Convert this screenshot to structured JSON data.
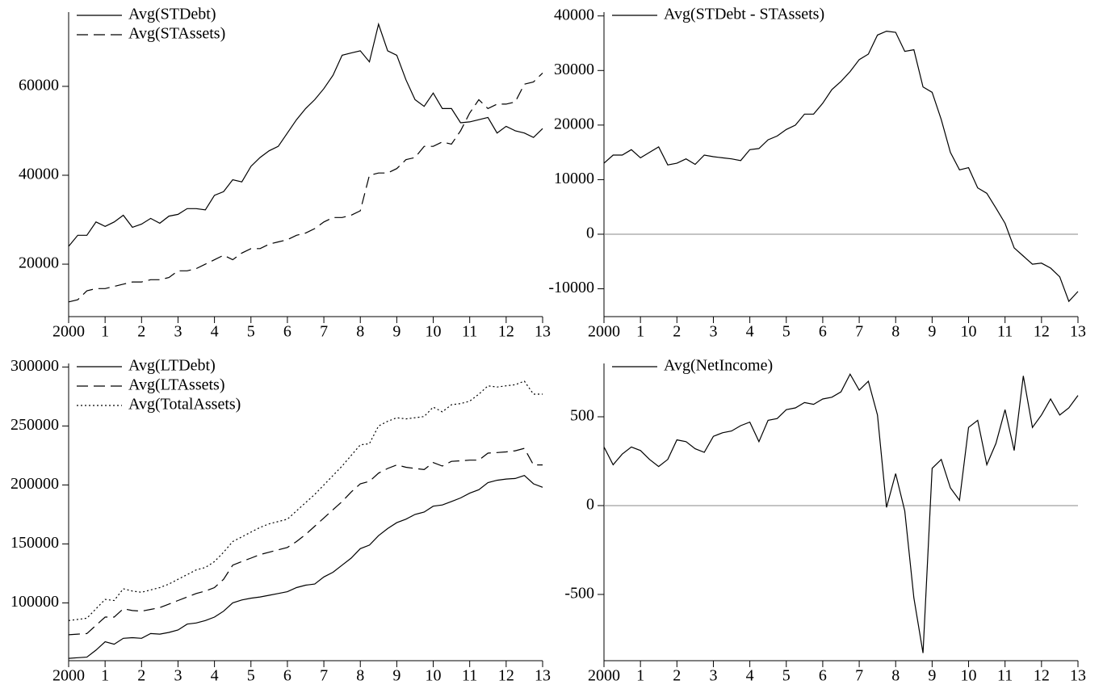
{
  "chart_data": [
    {
      "type": "line",
      "x": [
        2000,
        2000.25,
        2000.5,
        2000.75,
        2001,
        2001.25,
        2001.5,
        2001.75,
        2002,
        2002.25,
        2002.5,
        2002.75,
        2003,
        2003.25,
        2003.5,
        2003.75,
        2004,
        2004.25,
        2004.5,
        2004.75,
        2005,
        2005.25,
        2005.5,
        2005.75,
        2006,
        2006.25,
        2006.5,
        2006.75,
        2007,
        2007.25,
        2007.5,
        2007.75,
        2008,
        2008.25,
        2008.5,
        2008.75,
        2009,
        2009.25,
        2009.5,
        2009.75,
        2010,
        2010.25,
        2010.5,
        2010.75,
        2011,
        2011.25,
        2011.5,
        2011.75,
        2012,
        2012.25,
        2012.5,
        2012.75,
        2013
      ],
      "xlim": [
        2000,
        2013
      ],
      "xticks": [
        2000,
        {
          "value": 2001,
          "label": "1"
        },
        {
          "value": 2002,
          "label": "2"
        },
        {
          "value": 2003,
          "label": "3"
        },
        {
          "value": 2004,
          "label": "4"
        },
        {
          "value": 2005,
          "label": "5"
        },
        {
          "value": 2006,
          "label": "6"
        },
        {
          "value": 2007,
          "label": "7"
        },
        {
          "value": 2008,
          "label": "8"
        },
        {
          "value": 2009,
          "label": "9"
        },
        {
          "value": 2010,
          "label": "10"
        },
        {
          "value": 2011,
          "label": "11"
        },
        {
          "value": 2012,
          "label": "12"
        },
        {
          "value": 2013,
          "label": "13"
        }
      ],
      "ylim": [
        8200,
        76700
      ],
      "yticks": [
        20000,
        40000,
        60000
      ],
      "zero_line": false,
      "series": [
        {
          "name": "Avg(STDebt)",
          "color": "#000000",
          "style": "solid",
          "values": [
            24000,
            26500,
            26500,
            29500,
            28500,
            29500,
            31000,
            28300,
            29000,
            30300,
            29200,
            30800,
            31200,
            32500,
            32500,
            32200,
            35500,
            36300,
            39000,
            38500,
            42000,
            44000,
            45500,
            46500,
            49500,
            52500,
            55000,
            57000,
            59500,
            62500,
            67000,
            67500,
            68000,
            65500,
            74000,
            68000,
            67000,
            61500,
            57000,
            55500,
            58500,
            55000,
            55000,
            51800,
            52000,
            52500,
            53000,
            49500,
            51000,
            50000,
            49500,
            48500,
            50500
          ]
        },
        {
          "name": "Avg(STAssets)",
          "color": "#000000",
          "style": "dashed",
          "values": [
            11500,
            12000,
            14000,
            14500,
            14500,
            15000,
            15500,
            16000,
            16000,
            16500,
            16500,
            17000,
            18500,
            18500,
            19000,
            20000,
            21000,
            22000,
            21000,
            22500,
            23500,
            23500,
            24500,
            25000,
            25500,
            26500,
            27000,
            28000,
            29500,
            30500,
            30500,
            31000,
            32000,
            40000,
            40500,
            40500,
            41500,
            43500,
            44000,
            46500,
            46500,
            47500,
            47000,
            50000,
            54000,
            57000,
            55000,
            56000,
            56000,
            56500,
            60500,
            61000,
            63000
          ]
        }
      ]
    },
    {
      "type": "line",
      "x": [
        2000,
        2000.25,
        2000.5,
        2000.75,
        2001,
        2001.25,
        2001.5,
        2001.75,
        2002,
        2002.25,
        2002.5,
        2002.75,
        2003,
        2003.25,
        2003.5,
        2003.75,
        2004,
        2004.25,
        2004.5,
        2004.75,
        2005,
        2005.25,
        2005.5,
        2005.75,
        2006,
        2006.25,
        2006.5,
        2006.75,
        2007,
        2007.25,
        2007.5,
        2007.75,
        2008,
        2008.25,
        2008.5,
        2008.75,
        2009,
        2009.25,
        2009.5,
        2009.75,
        2010,
        2010.25,
        2010.5,
        2010.75,
        2011,
        2011.25,
        2011.5,
        2011.75,
        2012,
        2012.25,
        2012.5,
        2012.75,
        2013
      ],
      "xlim": [
        2000,
        2013
      ],
      "xticks": [
        2000,
        {
          "value": 2001,
          "label": "1"
        },
        {
          "value": 2002,
          "label": "2"
        },
        {
          "value": 2003,
          "label": "3"
        },
        {
          "value": 2004,
          "label": "4"
        },
        {
          "value": 2005,
          "label": "5"
        },
        {
          "value": 2006,
          "label": "6"
        },
        {
          "value": 2007,
          "label": "7"
        },
        {
          "value": 2008,
          "label": "8"
        },
        {
          "value": 2009,
          "label": "9"
        },
        {
          "value": 2010,
          "label": "10"
        },
        {
          "value": 2011,
          "label": "11"
        },
        {
          "value": 2012,
          "label": "12"
        },
        {
          "value": 2013,
          "label": "13"
        }
      ],
      "ylim": [
        -15100,
        40700
      ],
      "yticks": [
        -10000,
        0,
        10000,
        20000,
        30000,
        40000
      ],
      "zero_line": true,
      "series": [
        {
          "name": "Avg(STDebt - STAssets)",
          "color": "#000000",
          "style": "solid",
          "values": [
            13000,
            14500,
            14500,
            15500,
            14000,
            15000,
            16000,
            12700,
            13000,
            13800,
            12800,
            14500,
            14200,
            14000,
            13800,
            13500,
            15500,
            15700,
            17300,
            18000,
            19200,
            20000,
            22000,
            22000,
            24000,
            26500,
            28000,
            29800,
            32000,
            33000,
            36500,
            37200,
            37000,
            33500,
            33800,
            27000,
            26000,
            21000,
            15000,
            11800,
            12200,
            8500,
            7500,
            4800,
            2000,
            -2500,
            -4000,
            -5500,
            -5300,
            -6200,
            -7800,
            -12300,
            -10500
          ]
        }
      ]
    },
    {
      "type": "line",
      "x": [
        2000,
        2000.25,
        2000.5,
        2000.75,
        2001,
        2001.25,
        2001.5,
        2001.75,
        2002,
        2002.25,
        2002.5,
        2002.75,
        2003,
        2003.25,
        2003.5,
        2003.75,
        2004,
        2004.25,
        2004.5,
        2004.75,
        2005,
        2005.25,
        2005.5,
        2005.75,
        2006,
        2006.25,
        2006.5,
        2006.75,
        2007,
        2007.25,
        2007.5,
        2007.75,
        2008,
        2008.25,
        2008.5,
        2008.75,
        2009,
        2009.25,
        2009.5,
        2009.75,
        2010,
        2010.25,
        2010.5,
        2010.75,
        2011,
        2011.25,
        2011.5,
        2011.75,
        2012,
        2012.25,
        2012.5,
        2012.75,
        2013
      ],
      "xlim": [
        2000,
        2013
      ],
      "xticks": [
        2000,
        {
          "value": 2001,
          "label": "1"
        },
        {
          "value": 2002,
          "label": "2"
        },
        {
          "value": 2003,
          "label": "3"
        },
        {
          "value": 2004,
          "label": "4"
        },
        {
          "value": 2005,
          "label": "5"
        },
        {
          "value": 2006,
          "label": "6"
        },
        {
          "value": 2007,
          "label": "7"
        },
        {
          "value": 2008,
          "label": "8"
        },
        {
          "value": 2009,
          "label": "9"
        },
        {
          "value": 2010,
          "label": "10"
        },
        {
          "value": 2011,
          "label": "11"
        },
        {
          "value": 2012,
          "label": "12"
        },
        {
          "value": 2013,
          "label": "13"
        }
      ],
      "ylim": [
        51000,
        303000
      ],
      "yticks": [
        100000,
        150000,
        200000,
        250000,
        300000
      ],
      "zero_line": false,
      "series": [
        {
          "name": "Avg(LTDebt)",
          "color": "#000000",
          "style": "solid",
          "values": [
            53000,
            53500,
            54000,
            60000,
            67000,
            65000,
            70000,
            70500,
            70000,
            74000,
            73500,
            75000,
            77000,
            82000,
            83000,
            85000,
            88000,
            93000,
            100000,
            102500,
            104000,
            105000,
            106500,
            108000,
            109500,
            113000,
            115000,
            116000,
            122000,
            126000,
            132000,
            138000,
            146000,
            149000,
            157000,
            163000,
            168000,
            171000,
            175000,
            177000,
            182000,
            183000,
            186000,
            189000,
            193000,
            196000,
            202000,
            204000,
            205000,
            205500,
            208000,
            201000,
            198000
          ]
        },
        {
          "name": "Avg(LTAssets)",
          "color": "#000000",
          "style": "dashed",
          "values": [
            73000,
            73500,
            74000,
            81000,
            88000,
            88000,
            95000,
            93500,
            93000,
            94500,
            96000,
            99000,
            102000,
            105000,
            108000,
            110000,
            113000,
            120000,
            132000,
            135000,
            138000,
            141000,
            143000,
            145000,
            147000,
            152000,
            158000,
            165000,
            172000,
            179000,
            186000,
            194000,
            201000,
            203000,
            210000,
            214000,
            217000,
            215000,
            214000,
            213000,
            219000,
            216000,
            220000,
            220500,
            221000,
            221000,
            227000,
            227500,
            228000,
            229000,
            231000,
            217000,
            217000
          ]
        },
        {
          "name": "Avg(TotalAssets)",
          "color": "#000000",
          "style": "dotted",
          "values": [
            85000,
            86000,
            87000,
            95000,
            103000,
            102000,
            112000,
            110000,
            109000,
            111000,
            113000,
            116000,
            120000,
            124000,
            128000,
            130000,
            135000,
            143000,
            152000,
            156000,
            160000,
            164000,
            167000,
            169000,
            171000,
            178000,
            185000,
            192000,
            200000,
            208000,
            216000,
            225000,
            234000,
            235000,
            250000,
            254000,
            257000,
            256000,
            257000,
            258000,
            266000,
            262000,
            268000,
            269000,
            271000,
            277000,
            284000,
            283000,
            284000,
            285000,
            288000,
            277000,
            277000
          ]
        }
      ]
    },
    {
      "type": "line",
      "x": [
        2000,
        2000.25,
        2000.5,
        2000.75,
        2001,
        2001.25,
        2001.5,
        2001.75,
        2002,
        2002.25,
        2002.5,
        2002.75,
        2003,
        2003.25,
        2003.5,
        2003.75,
        2004,
        2004.25,
        2004.5,
        2004.75,
        2005,
        2005.25,
        2005.5,
        2005.75,
        2006,
        2006.25,
        2006.5,
        2006.75,
        2007,
        2007.25,
        2007.5,
        2007.75,
        2008,
        2008.25,
        2008.5,
        2008.75,
        2009,
        2009.25,
        2009.5,
        2009.75,
        2010,
        2010.25,
        2010.5,
        2010.75,
        2011,
        2011.25,
        2011.5,
        2011.75,
        2012,
        2012.25,
        2012.5,
        2012.75,
        2013
      ],
      "xlim": [
        2000,
        2013
      ],
      "xticks": [
        2000,
        {
          "value": 2001,
          "label": "1"
        },
        {
          "value": 2002,
          "label": "2"
        },
        {
          "value": 2003,
          "label": "3"
        },
        {
          "value": 2004,
          "label": "4"
        },
        {
          "value": 2005,
          "label": "5"
        },
        {
          "value": 2006,
          "label": "6"
        },
        {
          "value": 2007,
          "label": "7"
        },
        {
          "value": 2008,
          "label": "8"
        },
        {
          "value": 2009,
          "label": "9"
        },
        {
          "value": 2010,
          "label": "10"
        },
        {
          "value": 2011,
          "label": "11"
        },
        {
          "value": 2012,
          "label": "12"
        },
        {
          "value": 2013,
          "label": "13"
        }
      ],
      "ylim": [
        -873,
        800
      ],
      "yticks": [
        -500,
        0,
        500
      ],
      "zero_line": true,
      "series": [
        {
          "name": "Avg(NetIncome)",
          "color": "#000000",
          "style": "solid",
          "values": [
            330,
            230,
            290,
            330,
            310,
            260,
            220,
            260,
            370,
            360,
            320,
            300,
            390,
            410,
            420,
            450,
            470,
            360,
            480,
            490,
            540,
            550,
            580,
            570,
            600,
            610,
            640,
            740,
            650,
            700,
            510,
            -10,
            180,
            -30,
            -520,
            -830,
            210,
            260,
            100,
            30,
            440,
            480,
            230,
            350,
            540,
            310,
            730,
            440,
            510,
            600,
            510,
            550,
            620
          ]
        }
      ]
    }
  ]
}
